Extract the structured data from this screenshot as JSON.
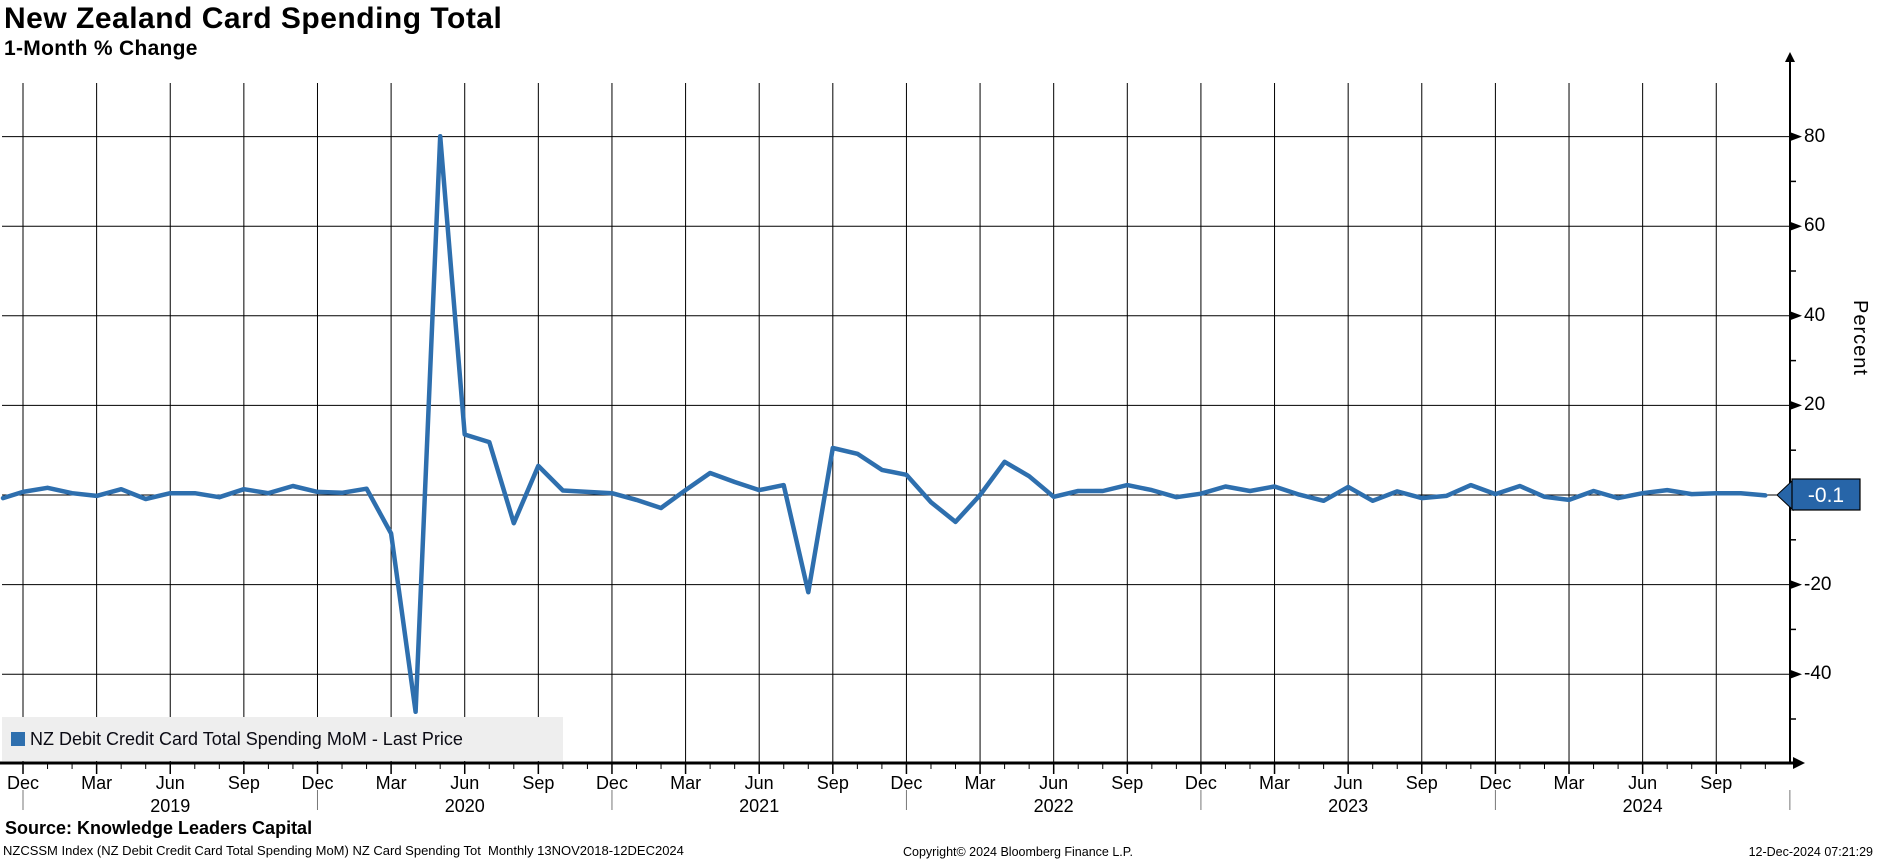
{
  "title": "New Zealand Card Spending Total",
  "subtitle": "1-Month % Change",
  "legend": {
    "label": "NZ Debit Credit Card Total Spending MoM - Last Price"
  },
  "last_price": {
    "value": "-0.1"
  },
  "colors": {
    "line": "#2e6fae",
    "last_price_box": "#2765a8",
    "legend_bg": "#eeeeee",
    "grid": "#000000"
  },
  "y_axis": {
    "title": "Percent",
    "major_ticks": [
      80,
      60,
      40,
      20,
      -20,
      -40
    ],
    "minor_ticks": [
      70,
      50,
      30,
      10,
      -10,
      -30,
      -50
    ],
    "gridline_values": [
      80,
      60,
      40,
      20,
      0,
      -20,
      -40
    ]
  },
  "x_axis": {
    "quarter_labels": [
      "Dec",
      "Mar",
      "Jun",
      "Sep",
      "Dec",
      "Mar",
      "Jun",
      "Sep",
      "Dec",
      "Mar",
      "Jun",
      "Sep",
      "Dec",
      "Mar",
      "Jun",
      "Sep",
      "Dec",
      "Mar",
      "Jun",
      "Sep",
      "Dec",
      "Mar",
      "Jun",
      "Sep"
    ],
    "year_labels": [
      "2019",
      "2020",
      "2021",
      "2022",
      "2023",
      "2024"
    ]
  },
  "footer": {
    "source": "Source: Knowledge Leaders Capital",
    "fineprint": "NZCSSM Index (NZ Debit Credit Card Total Spending MoM) NZ Card Spending Tot  Monthly 13NOV2018-12DEC2024",
    "copyright": "Copyright© 2024 Bloomberg Finance L.P.",
    "timestamp": "12-Dec-2024 07:21:29"
  },
  "chart_data": {
    "type": "line",
    "title": "New Zealand Card Spending Total",
    "subtitle": "1-Month % Change",
    "ylabel": "Percent",
    "ylim": [
      -60,
      93
    ],
    "grid": true,
    "legend_position": "bottom-left",
    "frequency": "monthly",
    "x_range": "13NOV2018-12DEC2024",
    "months": [
      "2018-11",
      "2018-12",
      "2019-01",
      "2019-02",
      "2019-03",
      "2019-04",
      "2019-05",
      "2019-06",
      "2019-07",
      "2019-08",
      "2019-09",
      "2019-10",
      "2019-11",
      "2019-12",
      "2020-01",
      "2020-02",
      "2020-03",
      "2020-04",
      "2020-05",
      "2020-06",
      "2020-07",
      "2020-08",
      "2020-09",
      "2020-10",
      "2020-11",
      "2020-12",
      "2021-01",
      "2021-02",
      "2021-03",
      "2021-04",
      "2021-05",
      "2021-06",
      "2021-07",
      "2021-08",
      "2021-09",
      "2021-10",
      "2021-11",
      "2021-12",
      "2022-01",
      "2022-02",
      "2022-03",
      "2022-04",
      "2022-05",
      "2022-06",
      "2022-07",
      "2022-08",
      "2022-09",
      "2022-10",
      "2022-11",
      "2022-12",
      "2023-01",
      "2023-02",
      "2023-03",
      "2023-04",
      "2023-05",
      "2023-06",
      "2023-07",
      "2023-08",
      "2023-09",
      "2023-10",
      "2023-11",
      "2023-12",
      "2024-01",
      "2024-02",
      "2024-03",
      "2024-04",
      "2024-05",
      "2024-06",
      "2024-07",
      "2024-08",
      "2024-09",
      "2024-10",
      "2024-11"
    ],
    "series": [
      {
        "name": "NZ Debit Credit Card Total Spending MoM - Last Price",
        "values": [
          -0.7,
          0.7,
          1.6,
          0.4,
          -0.2,
          1.3,
          -0.9,
          0.4,
          0.4,
          -0.5,
          1.3,
          0.4,
          2.0,
          0.7,
          0.5,
          1.4,
          -8.6,
          -48.4,
          80.1,
          13.5,
          11.8,
          -6.3,
          6.5,
          1.0,
          0.7,
          0.4,
          -1.1,
          -2.9,
          1.1,
          4.9,
          2.9,
          1.1,
          2.2,
          -21.7,
          10.5,
          9.2,
          5.6,
          4.5,
          -1.6,
          -6.0,
          0.0,
          7.4,
          4.2,
          -0.4,
          0.9,
          0.9,
          2.2,
          1.1,
          -0.5,
          0.3,
          1.9,
          0.9,
          1.9,
          0.1,
          -1.3,
          1.8,
          -1.3,
          0.8,
          -0.7,
          -0.2,
          2.2,
          0.2,
          2.0,
          -0.4,
          -1.1,
          0.9,
          -0.7,
          0.4,
          1.1,
          0.2,
          0.4,
          0.4,
          -0.1
        ]
      }
    ]
  }
}
